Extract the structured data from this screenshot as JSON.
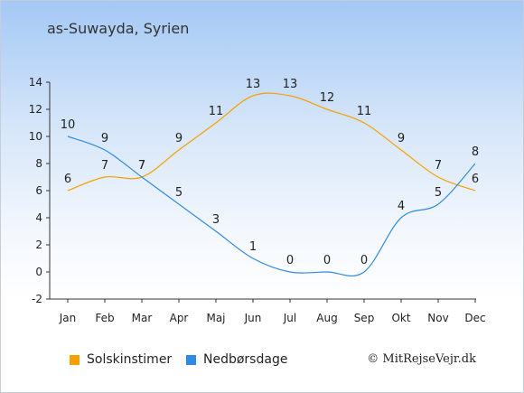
{
  "title": "as-Suwayda, Syrien",
  "credit": "© MitRejseVejr.dk",
  "chart_data": {
    "type": "line",
    "categories": [
      "Jan",
      "Feb",
      "Mar",
      "Apr",
      "Maj",
      "Jun",
      "Jul",
      "Aug",
      "Sep",
      "Okt",
      "Nov",
      "Dec"
    ],
    "series": [
      {
        "name": "Solskinstimer",
        "color": "#f5a000",
        "values": [
          6,
          7,
          7,
          9,
          11,
          13,
          13,
          12,
          11,
          9,
          7,
          6
        ]
      },
      {
        "name": "Nedbørsdage",
        "color": "#2f8be0",
        "values": [
          10,
          9,
          7,
          5,
          3,
          1,
          0,
          0,
          0,
          4,
          5,
          8
        ]
      }
    ],
    "yticks": [
      -2,
      0,
      2,
      4,
      6,
      8,
      10,
      12,
      14
    ],
    "ylim": [
      -2,
      14
    ],
    "grid": false,
    "legend": "bottom-left"
  }
}
